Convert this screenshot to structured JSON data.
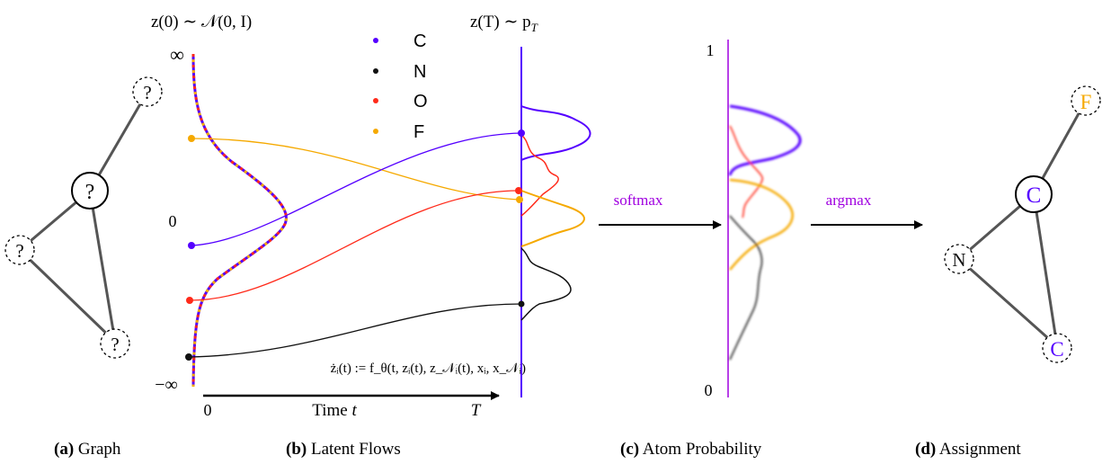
{
  "colors": {
    "carbon": "#5500ff",
    "nitrogen": "#111111",
    "oxygen": "#ff2a1a",
    "fluorine": "#f5a900",
    "accent_purple": "#a000e0",
    "edge_gray": "#555555"
  },
  "panel_a": {
    "caption_letter": "(a)",
    "caption_text": " Graph",
    "node_label": "?"
  },
  "panel_b": {
    "caption_letter": "(b)",
    "caption_text": " Latent Flows",
    "top_left_math": "z(0) ∼ 𝒩(0, I)",
    "top_right_math": "z(T) ∼ p",
    "top_right_sub": "T",
    "y_inf_top": "∞",
    "y_zero": "0",
    "y_inf_bottom": "−∞",
    "x_zero": "0",
    "x_label": "Time ",
    "x_label_var": "t",
    "x_end": "T",
    "ode": "żᵢ(t) := f_θ(t, zᵢ(t), z_𝒩ᵢ(t), xᵢ, x_𝒩ᵢ)",
    "legend": [
      {
        "label": "C",
        "color_key": "carbon"
      },
      {
        "label": "N",
        "color_key": "nitrogen"
      },
      {
        "label": "O",
        "color_key": "oxygen"
      },
      {
        "label": "F",
        "color_key": "fluorine"
      }
    ]
  },
  "arrows": {
    "softmax": "softmax",
    "argmax": "argmax"
  },
  "panel_c": {
    "caption_letter": "(c)",
    "caption_text": " Atom Probability",
    "y_top": "1",
    "y_bottom": "0"
  },
  "panel_d": {
    "caption_letter": "(d)",
    "caption_text": " Assignment",
    "nodes": [
      {
        "label": "F",
        "color_key": "fluorine"
      },
      {
        "label": "C",
        "color_key": "carbon"
      },
      {
        "label": "N",
        "color_key": "nitrogen"
      },
      {
        "label": "C",
        "color_key": "carbon"
      }
    ]
  }
}
